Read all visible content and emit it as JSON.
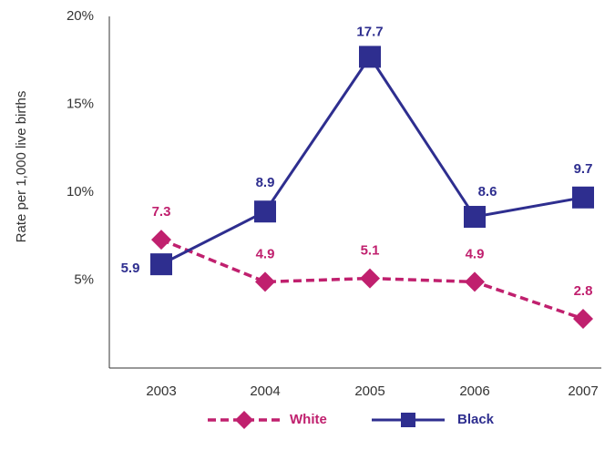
{
  "chart_data": {
    "type": "line",
    "title": "",
    "xlabel": "",
    "ylabel": "Rate per 1,000 live births",
    "categories": [
      "2003",
      "2004",
      "2005",
      "2006",
      "2007"
    ],
    "ylim": [
      0,
      20
    ],
    "yticks": [
      5,
      10,
      15,
      20
    ],
    "ytick_labels": [
      "5%",
      "10%",
      "15%",
      "20%"
    ],
    "grid": false,
    "legend_position": "bottom",
    "series": [
      {
        "name": "White",
        "values": [
          7.3,
          4.9,
          5.1,
          4.9,
          2.8
        ],
        "color": "#c0206e",
        "line_style": "dashed",
        "marker": "diamond"
      },
      {
        "name": "Black",
        "values": [
          5.9,
          8.9,
          17.7,
          8.6,
          9.7
        ],
        "color": "#2e2e8f",
        "line_style": "solid",
        "marker": "square"
      }
    ]
  }
}
